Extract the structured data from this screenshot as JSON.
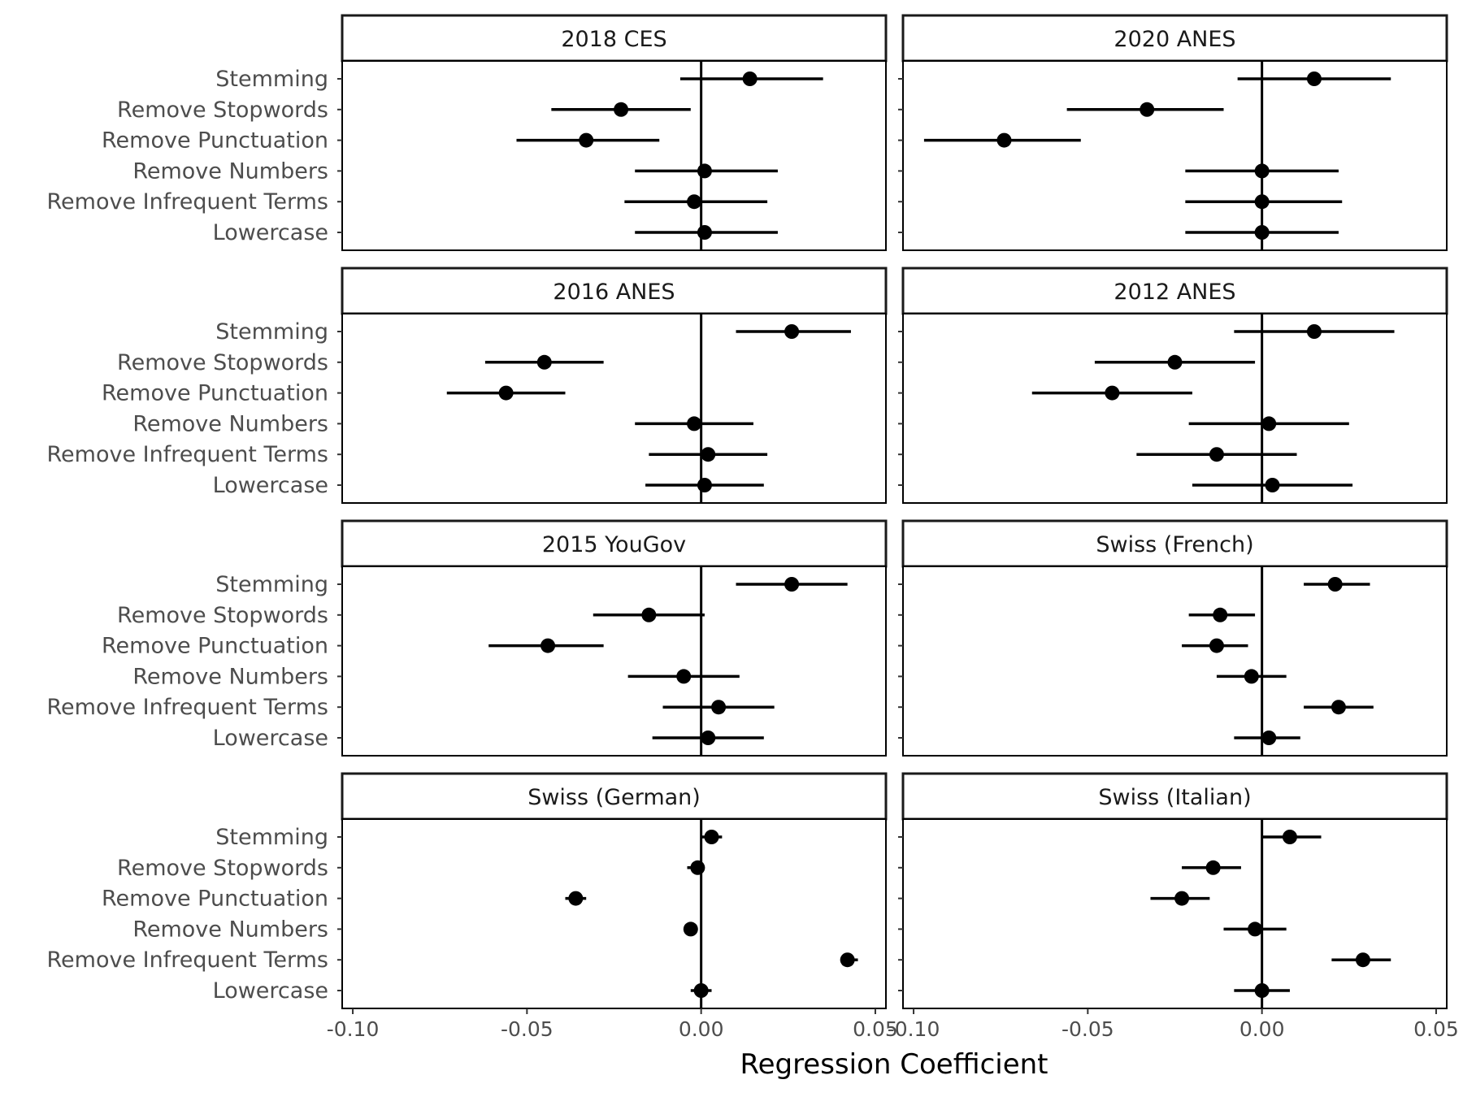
{
  "chart_data": {
    "type": "scatter",
    "subtype": "coefficient-plot-with-error-bars",
    "xlabel": "Regression Coefficient",
    "ylabel": "",
    "xlim": [
      -0.1,
      0.05
    ],
    "x_ticks": [
      "-0.10",
      "-0.05",
      "0.00",
      "0.05"
    ],
    "reference_line_x": 0,
    "grid": false,
    "legend": "none",
    "terms": [
      "Stemming",
      "Remove Stopwords",
      "Remove Punctuation",
      "Remove Numbers",
      "Remove Infrequent Terms",
      "Lowercase"
    ],
    "panels": [
      {
        "title": "2018 CES",
        "est": [
          0.014,
          -0.023,
          -0.033,
          0.001,
          -0.002,
          0.001
        ],
        "lo": [
          -0.006,
          -0.043,
          -0.053,
          -0.019,
          -0.022,
          -0.019
        ],
        "hi": [
          0.035,
          -0.003,
          -0.012,
          0.022,
          0.019,
          0.022
        ]
      },
      {
        "title": "2020 ANES",
        "est": [
          0.015,
          -0.033,
          -0.074,
          0.0,
          0.0,
          0.0
        ],
        "lo": [
          -0.007,
          -0.056,
          -0.097,
          -0.022,
          -0.022,
          -0.022
        ],
        "hi": [
          0.037,
          -0.011,
          -0.052,
          0.022,
          0.023,
          0.022
        ]
      },
      {
        "title": "2016 ANES",
        "est": [
          0.026,
          -0.045,
          -0.056,
          -0.002,
          0.002,
          0.001
        ],
        "lo": [
          0.01,
          -0.062,
          -0.073,
          -0.019,
          -0.015,
          -0.016
        ],
        "hi": [
          0.043,
          -0.028,
          -0.039,
          0.015,
          0.019,
          0.018
        ]
      },
      {
        "title": "2012 ANES",
        "est": [
          0.015,
          -0.025,
          -0.043,
          0.002,
          -0.013,
          0.003
        ],
        "lo": [
          -0.008,
          -0.048,
          -0.066,
          -0.021,
          -0.036,
          -0.02
        ],
        "hi": [
          0.038,
          -0.002,
          -0.02,
          0.025,
          0.01,
          0.026
        ]
      },
      {
        "title": "2015 YouGov",
        "est": [
          0.026,
          -0.015,
          -0.044,
          -0.005,
          0.005,
          0.002
        ],
        "lo": [
          0.01,
          -0.031,
          -0.061,
          -0.021,
          -0.011,
          -0.014
        ],
        "hi": [
          0.042,
          0.001,
          -0.028,
          0.011,
          0.021,
          0.018
        ]
      },
      {
        "title": "Swiss (French)",
        "est": [
          0.021,
          -0.012,
          -0.013,
          -0.003,
          0.022,
          0.002
        ],
        "lo": [
          0.012,
          -0.021,
          -0.023,
          -0.013,
          0.012,
          -0.008
        ],
        "hi": [
          0.031,
          -0.002,
          -0.004,
          0.007,
          0.032,
          0.011
        ]
      },
      {
        "title": "Swiss (German)",
        "est": [
          0.003,
          -0.001,
          -0.036,
          -0.003,
          0.042,
          0.0
        ],
        "lo": [
          0.0,
          -0.004,
          -0.039,
          -0.005,
          0.04,
          -0.003
        ],
        "hi": [
          0.006,
          0.001,
          -0.033,
          -0.001,
          0.045,
          0.003
        ]
      },
      {
        "title": "Swiss (Italian)",
        "est": [
          0.008,
          -0.014,
          -0.023,
          -0.002,
          0.029,
          0.0
        ],
        "lo": [
          0.0,
          -0.023,
          -0.032,
          -0.011,
          0.02,
          -0.008
        ],
        "hi": [
          0.017,
          -0.006,
          -0.015,
          0.007,
          0.037,
          0.008
        ]
      }
    ]
  }
}
